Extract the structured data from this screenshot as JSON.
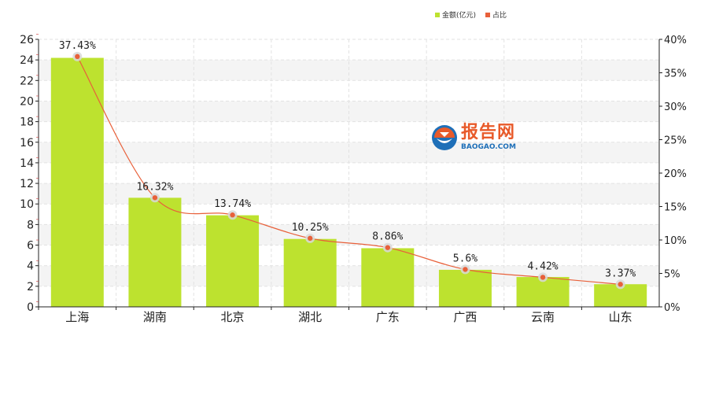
{
  "legend": {
    "amount_label": "金额(亿元)",
    "share_label": "占比"
  },
  "watermark": {
    "title": "报告网",
    "subtitle": "BAOGAO.COM"
  },
  "colors": {
    "bar": "#bde22f",
    "line": "#e8603a",
    "logo_orange": "#e85a2a",
    "logo_blue": "#1e6fb8"
  },
  "chart_data": {
    "type": "bar",
    "categories": [
      "上海",
      "湖南",
      "北京",
      "湖北",
      "广东",
      "广西",
      "云南",
      "山东"
    ],
    "series": [
      {
        "name": "金额(亿元)",
        "type": "bar",
        "axis": "left",
        "values": [
          24.2,
          10.6,
          8.9,
          6.6,
          5.7,
          3.6,
          2.9,
          2.2
        ]
      },
      {
        "name": "占比",
        "type": "line",
        "axis": "right",
        "values": [
          37.43,
          16.32,
          13.74,
          10.25,
          8.86,
          5.6,
          4.42,
          3.37
        ],
        "labels": [
          "37.43%",
          "16.32%",
          "13.74%",
          "10.25%",
          "8.86%",
          "5.6%",
          "4.42%",
          "3.37%"
        ]
      }
    ],
    "y_left": {
      "ylim": [
        0,
        26
      ],
      "ticks": [
        "0",
        "2",
        "4",
        "6",
        "8",
        "10",
        "12",
        "14",
        "16",
        "18",
        "20",
        "22",
        "24",
        "26"
      ]
    },
    "y_right": {
      "ylim": [
        0,
        40
      ],
      "ticks": [
        "0%",
        "5%",
        "10%",
        "15%",
        "20%",
        "25%",
        "30%",
        "35%",
        "40%"
      ]
    },
    "grid": true,
    "legend_position": "top-right"
  }
}
